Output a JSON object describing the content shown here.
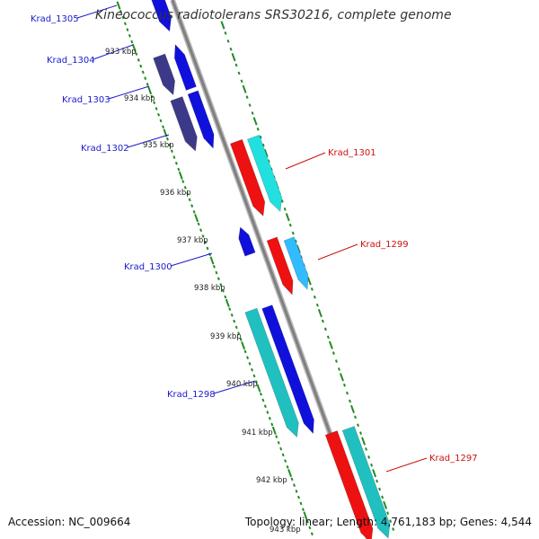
{
  "title": "Kineococcus radiotolerans SRS30216, complete genome",
  "footer": {
    "accession": "Accession: NC_009664",
    "summary": "Topology: linear; Length: 4,761,183 bp; Genes: 4,544"
  },
  "scale_labels": [
    "933 kbp",
    "934 kbp",
    "935 kbp",
    "936 kbp",
    "937 kbp",
    "938 kbp",
    "939 kbp",
    "940 kbp",
    "941 kbp",
    "942 kbp",
    "943 kbp"
  ],
  "colors": {
    "label_forward": "#1a1acc",
    "label_reverse": "#cc1111",
    "backbone": "#888888",
    "ticks": "#228b22",
    "gene_blue": "#1010dd",
    "gene_navy": "#3c3a88",
    "gene_red": "#ee1111",
    "gene_cyan": "#22e0e0",
    "gene_teal": "#20c0c0",
    "gene_sky": "#33bbff"
  },
  "genes": [
    {
      "name": "Krad_1305",
      "strand": "forward",
      "icon": "arrow-down"
    },
    {
      "name": "Krad_1304",
      "strand": "forward",
      "icon": "arrow-up"
    },
    {
      "name": "Krad_1303",
      "strand": "forward",
      "icon": "arrow-down"
    },
    {
      "name": "Krad_1302",
      "strand": "forward",
      "icon": "arrow-down"
    },
    {
      "name": "Krad_1301",
      "strand": "reverse",
      "icon": "arrow-down"
    },
    {
      "name": "Krad_1300",
      "strand": "forward",
      "icon": "arrow-up"
    },
    {
      "name": "Krad_1299",
      "strand": "reverse",
      "icon": "arrow-down"
    },
    {
      "name": "Krad_1298",
      "strand": "forward",
      "icon": "arrow-down"
    },
    {
      "name": "Krad_1297",
      "strand": "reverse",
      "icon": "arrow-down"
    }
  ]
}
